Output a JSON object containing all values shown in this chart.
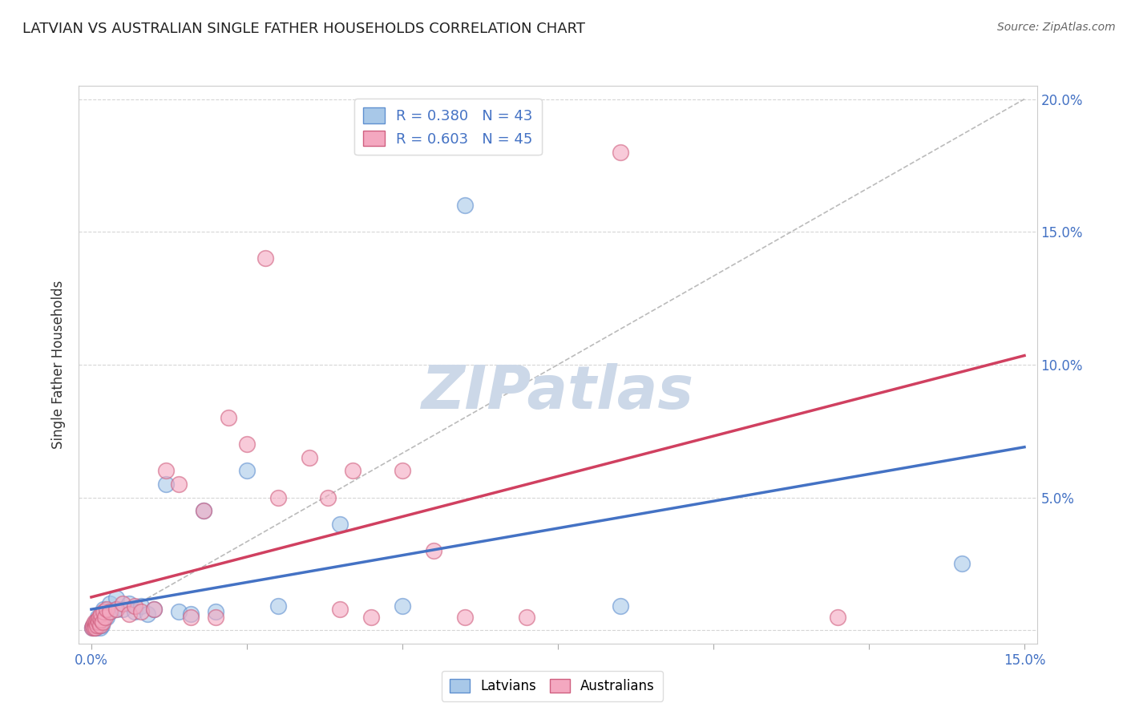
{
  "title": "LATVIAN VS AUSTRALIAN SINGLE FATHER HOUSEHOLDS CORRELATION CHART",
  "source": "Source: ZipAtlas.com",
  "ylabel": "Single Father Households",
  "xlim": [
    -0.002,
    0.152
  ],
  "ylim": [
    -0.005,
    0.205
  ],
  "xticks": [
    0.0,
    0.025,
    0.05,
    0.075,
    0.1,
    0.125,
    0.15
  ],
  "xtick_labels": [
    "0.0%",
    "",
    "",
    "",
    "",
    "",
    "15.0%"
  ],
  "yticks": [
    0.0,
    0.05,
    0.1,
    0.15,
    0.2
  ],
  "ytick_labels": [
    "",
    "5.0%",
    "10.0%",
    "15.0%",
    "20.0%"
  ],
  "latvian_R": 0.38,
  "latvian_N": 43,
  "australian_R": 0.603,
  "australian_N": 45,
  "latvian_color": "#a8c8e8",
  "australian_color": "#f4a8c0",
  "latvian_edge_color": "#6090d0",
  "australian_edge_color": "#d06080",
  "latvian_line_color": "#4472c4",
  "australian_line_color": "#d04060",
  "reference_line_color": "#bbbbbb",
  "watermark_color": "#ccd8e8",
  "background_color": "#ffffff",
  "latvians_x": [
    0.0002,
    0.0003,
    0.0004,
    0.0005,
    0.0006,
    0.0006,
    0.0007,
    0.0008,
    0.0009,
    0.001,
    0.001,
    0.0012,
    0.0013,
    0.0014,
    0.0015,
    0.0016,
    0.0017,
    0.0018,
    0.002,
    0.002,
    0.0025,
    0.003,
    0.003,
    0.004,
    0.004,
    0.005,
    0.006,
    0.007,
    0.008,
    0.009,
    0.01,
    0.012,
    0.014,
    0.016,
    0.018,
    0.02,
    0.025,
    0.03,
    0.04,
    0.05,
    0.06,
    0.085,
    0.14
  ],
  "latvians_y": [
    0.001,
    0.0015,
    0.001,
    0.002,
    0.001,
    0.003,
    0.002,
    0.001,
    0.002,
    0.003,
    0.005,
    0.002,
    0.004,
    0.001,
    0.003,
    0.005,
    0.002,
    0.004,
    0.006,
    0.008,
    0.005,
    0.007,
    0.01,
    0.008,
    0.012,
    0.008,
    0.01,
    0.007,
    0.009,
    0.006,
    0.008,
    0.055,
    0.007,
    0.006,
    0.045,
    0.007,
    0.06,
    0.009,
    0.04,
    0.009,
    0.16,
    0.009,
    0.025
  ],
  "australians_x": [
    0.0002,
    0.0003,
    0.0004,
    0.0005,
    0.0006,
    0.0007,
    0.0008,
    0.0009,
    0.001,
    0.0012,
    0.0013,
    0.0014,
    0.0015,
    0.0016,
    0.0018,
    0.002,
    0.0022,
    0.0025,
    0.003,
    0.004,
    0.005,
    0.006,
    0.007,
    0.008,
    0.01,
    0.012,
    0.014,
    0.016,
    0.018,
    0.02,
    0.022,
    0.025,
    0.028,
    0.03,
    0.035,
    0.038,
    0.04,
    0.042,
    0.045,
    0.05,
    0.055,
    0.06,
    0.07,
    0.085,
    0.12
  ],
  "australians_y": [
    0.001,
    0.002,
    0.001,
    0.003,
    0.002,
    0.001,
    0.003,
    0.002,
    0.004,
    0.003,
    0.005,
    0.002,
    0.004,
    0.006,
    0.003,
    0.007,
    0.005,
    0.008,
    0.007,
    0.008,
    0.01,
    0.006,
    0.009,
    0.007,
    0.008,
    0.06,
    0.055,
    0.005,
    0.045,
    0.005,
    0.08,
    0.07,
    0.14,
    0.05,
    0.065,
    0.05,
    0.008,
    0.06,
    0.005,
    0.06,
    0.03,
    0.005,
    0.005,
    0.18,
    0.005
  ]
}
